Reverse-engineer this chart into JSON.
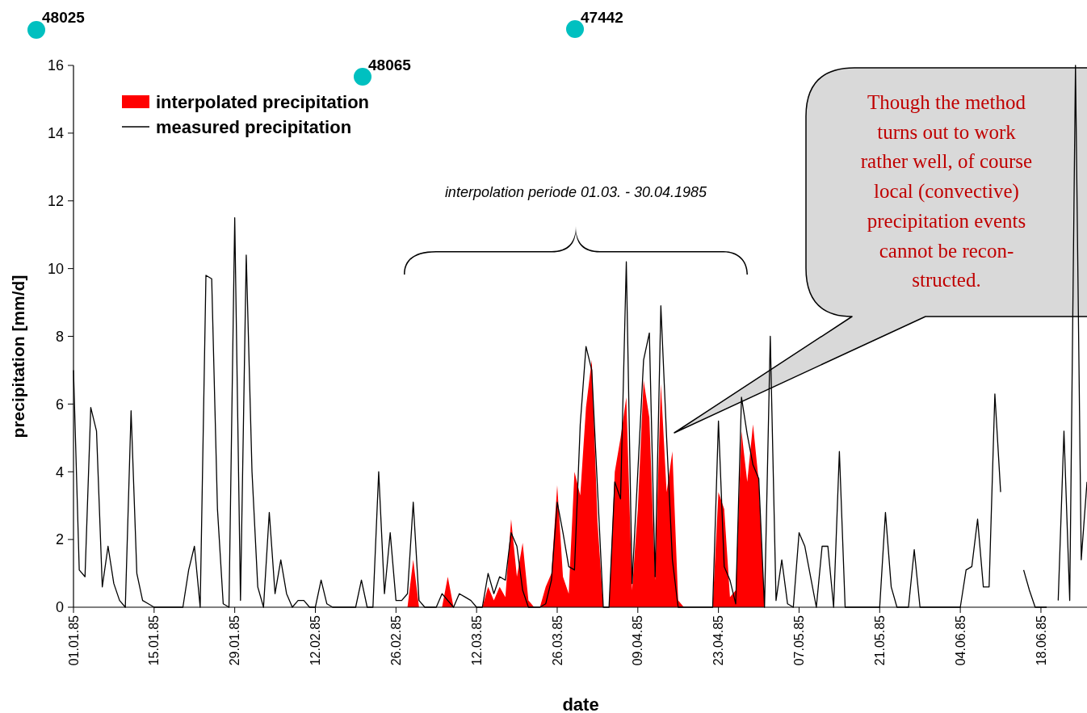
{
  "chart_data": {
    "type": "line",
    "xlabel": "date",
    "ylabel": "precipitation [mm/d]",
    "xlim": [
      "1985-01-01",
      "1985-06-26"
    ],
    "xticks": [
      {
        "value": "1985-01-01",
        "label": "01.01.85"
      },
      {
        "value": "1985-01-15",
        "label": "15.01.85"
      },
      {
        "value": "1985-01-29",
        "label": "29.01.85"
      },
      {
        "value": "1985-02-12",
        "label": "12.02.85"
      },
      {
        "value": "1985-02-26",
        "label": "26.02.85"
      },
      {
        "value": "1985-03-12",
        "label": "12.03.85"
      },
      {
        "value": "1985-03-26",
        "label": "26.03.85"
      },
      {
        "value": "1985-04-09",
        "label": "09.04.85"
      },
      {
        "value": "1985-04-23",
        "label": "23.04.85"
      },
      {
        "value": "1985-05-07",
        "label": "07.05.85"
      },
      {
        "value": "1985-05-21",
        "label": "21.05.85"
      },
      {
        "value": "1985-06-04",
        "label": "04.06.85"
      },
      {
        "value": "1985-06-18",
        "label": "18.06.85"
      }
    ],
    "ylim": [
      0,
      16
    ],
    "yticks": [
      0,
      2,
      4,
      6,
      8,
      10,
      12,
      14,
      16
    ],
    "legend": "top left",
    "x": [
      "1985-01-01",
      "1985-01-02",
      "1985-01-03",
      "1985-01-04",
      "1985-01-05",
      "1985-01-06",
      "1985-01-07",
      "1985-01-08",
      "1985-01-09",
      "1985-01-10",
      "1985-01-11",
      "1985-01-12",
      "1985-01-13",
      "1985-01-14",
      "1985-01-15",
      "1985-01-16",
      "1985-01-17",
      "1985-01-18",
      "1985-01-19",
      "1985-01-20",
      "1985-01-21",
      "1985-01-22",
      "1985-01-23",
      "1985-01-24",
      "1985-01-25",
      "1985-01-26",
      "1985-01-27",
      "1985-01-28",
      "1985-01-29",
      "1985-01-30",
      "1985-01-31",
      "1985-02-01",
      "1985-02-02",
      "1985-02-03",
      "1985-02-04",
      "1985-02-05",
      "1985-02-06",
      "1985-02-07",
      "1985-02-08",
      "1985-02-09",
      "1985-02-10",
      "1985-02-11",
      "1985-02-12",
      "1985-02-13",
      "1985-02-14",
      "1985-02-15",
      "1985-02-16",
      "1985-02-17",
      "1985-02-18",
      "1985-02-19",
      "1985-02-20",
      "1985-02-21",
      "1985-02-22",
      "1985-02-23",
      "1985-02-24",
      "1985-02-25",
      "1985-02-26",
      "1985-02-27",
      "1985-02-28",
      "1985-03-01",
      "1985-03-02",
      "1985-03-03",
      "1985-03-04",
      "1985-03-05",
      "1985-03-06",
      "1985-03-07",
      "1985-03-08",
      "1985-03-09",
      "1985-03-10",
      "1985-03-11",
      "1985-03-12",
      "1985-03-13",
      "1985-03-14",
      "1985-03-15",
      "1985-03-16",
      "1985-03-17",
      "1985-03-18",
      "1985-03-19",
      "1985-03-20",
      "1985-03-21",
      "1985-03-22",
      "1985-03-23",
      "1985-03-24",
      "1985-03-25",
      "1985-03-26",
      "1985-03-27",
      "1985-03-28",
      "1985-03-29",
      "1985-03-30",
      "1985-03-31",
      "1985-04-01",
      "1985-04-02",
      "1985-04-03",
      "1985-04-04",
      "1985-04-05",
      "1985-04-06",
      "1985-04-07",
      "1985-04-08",
      "1985-04-09",
      "1985-04-10",
      "1985-04-11",
      "1985-04-12",
      "1985-04-13",
      "1985-04-14",
      "1985-04-15",
      "1985-04-16",
      "1985-04-17",
      "1985-04-18",
      "1985-04-19",
      "1985-04-20",
      "1985-04-21",
      "1985-04-22",
      "1985-04-23",
      "1985-04-24",
      "1985-04-25",
      "1985-04-26",
      "1985-04-27",
      "1985-04-28",
      "1985-04-29",
      "1985-04-30",
      "1985-05-01",
      "1985-05-02",
      "1985-05-03",
      "1985-05-04",
      "1985-05-05",
      "1985-05-06",
      "1985-05-07",
      "1985-05-08",
      "1985-05-09",
      "1985-05-10",
      "1985-05-11",
      "1985-05-12",
      "1985-05-13",
      "1985-05-14",
      "1985-05-15",
      "1985-05-16",
      "1985-05-17",
      "1985-05-18",
      "1985-05-19",
      "1985-05-20",
      "1985-05-21",
      "1985-05-22",
      "1985-05-23",
      "1985-05-24",
      "1985-05-25",
      "1985-05-26",
      "1985-05-27",
      "1985-05-28",
      "1985-05-29",
      "1985-05-30",
      "1985-05-31",
      "1985-06-01",
      "1985-06-02",
      "1985-06-03",
      "1985-06-04",
      "1985-06-05",
      "1985-06-06",
      "1985-06-07",
      "1985-06-08",
      "1985-06-09",
      "1985-06-10",
      "1985-06-11",
      "1985-06-12",
      "1985-06-13",
      "1985-06-14",
      "1985-06-15",
      "1985-06-16",
      "1985-06-17",
      "1985-06-18",
      "1985-06-19",
      "1985-06-20",
      "1985-06-21",
      "1985-06-22",
      "1985-06-23",
      "1985-06-24",
      "1985-06-25",
      "1985-06-26"
    ],
    "series": [
      {
        "name": "interpolated precipitation",
        "type": "area",
        "color": "#ff0000",
        "x": [
          "1985-02-28",
          "1985-03-01",
          "1985-03-02",
          "1985-03-03",
          "1985-03-04",
          "1985-03-05",
          "1985-03-06",
          "1985-03-07",
          "1985-03-08",
          "1985-03-09",
          "1985-03-10",
          "1985-03-11",
          "1985-03-12",
          "1985-03-13",
          "1985-03-14",
          "1985-03-15",
          "1985-03-16",
          "1985-03-17",
          "1985-03-18",
          "1985-03-19",
          "1985-03-20",
          "1985-03-21",
          "1985-03-22",
          "1985-03-23",
          "1985-03-24",
          "1985-03-25",
          "1985-03-26",
          "1985-03-27",
          "1985-03-28",
          "1985-03-29",
          "1985-03-30",
          "1985-03-31",
          "1985-04-01",
          "1985-04-02",
          "1985-04-03",
          "1985-04-04",
          "1985-04-05",
          "1985-04-06",
          "1985-04-07",
          "1985-04-08",
          "1985-04-09",
          "1985-04-10",
          "1985-04-11",
          "1985-04-12",
          "1985-04-13",
          "1985-04-14",
          "1985-04-15",
          "1985-04-16",
          "1985-04-17",
          "1985-04-18",
          "1985-04-19",
          "1985-04-20",
          "1985-04-21",
          "1985-04-22",
          "1985-04-23",
          "1985-04-24",
          "1985-04-25",
          "1985-04-26",
          "1985-04-27",
          "1985-04-28",
          "1985-04-29",
          "1985-04-30",
          "1985-05-01"
        ],
        "values": [
          0,
          1.4,
          0,
          0,
          0,
          0,
          0,
          0.9,
          0,
          0,
          0,
          0,
          0,
          0,
          0.6,
          0.2,
          0.6,
          0.3,
          2.6,
          0.9,
          1.9,
          0.2,
          0,
          0,
          0.6,
          1.0,
          3.6,
          0.9,
          0.4,
          4.0,
          3.3,
          5.9,
          7.3,
          2.5,
          0,
          0,
          4.0,
          5.0,
          6.2,
          0.5,
          2.9,
          6.7,
          5.6,
          0.8,
          6.6,
          3.4,
          4.6,
          0.2,
          0,
          0,
          0,
          0,
          0,
          0,
          3.4,
          2.9,
          0.3,
          0.5,
          5.2,
          3.7,
          5.4,
          3.7,
          0
        ]
      },
      {
        "name": "measured precipitation",
        "color": "#000000",
        "values": [
          7.0,
          1.1,
          0.9,
          5.9,
          5.2,
          0.6,
          1.8,
          0.7,
          0.2,
          0,
          5.8,
          1.0,
          0.2,
          0.1,
          0,
          0,
          0,
          0,
          0,
          0,
          1.1,
          1.8,
          0,
          9.8,
          9.7,
          2.9,
          0.1,
          0,
          11.5,
          0.2,
          10.4,
          4.0,
          0.6,
          0,
          2.8,
          0.4,
          1.4,
          0.4,
          0,
          0.2,
          0.2,
          0,
          0,
          0.8,
          0.1,
          0,
          0,
          0,
          0,
          0,
          0.8,
          0,
          0,
          4.0,
          0.4,
          2.2,
          0.2,
          0.2,
          0.4,
          3.1,
          0.2,
          0,
          0,
          0,
          0.4,
          0.2,
          0,
          0.4,
          0.3,
          0.2,
          0,
          0,
          1.0,
          0.4,
          0.9,
          0.8,
          2.2,
          1.8,
          0.5,
          0,
          0,
          0,
          0.1,
          0.8,
          3.1,
          2.2,
          1.2,
          1.1,
          5.4,
          7.7,
          7.0,
          3.5,
          0,
          0,
          3.7,
          3.2,
          10.2,
          0.7,
          4.0,
          7.3,
          8.1,
          0.9,
          8.9,
          5.0,
          1.4,
          0,
          0,
          0,
          0,
          0,
          0,
          0,
          5.5,
          1.2,
          0.8,
          0.1,
          6.2,
          5.1,
          4.2,
          3.8,
          0,
          8.0,
          0.2,
          1.4,
          0.1,
          0,
          2.2,
          1.8,
          0.9,
          0,
          1.8,
          1.8,
          0,
          4.6,
          0,
          0,
          0,
          0,
          0,
          0,
          0,
          2.8,
          0.6,
          0,
          0,
          0,
          1.7,
          0,
          0,
          0,
          0,
          0,
          0,
          0,
          0,
          1.1,
          1.2,
          2.6,
          0.6,
          0.6,
          6.3,
          3.4,
          null,
          null,
          null,
          1.1,
          0.5,
          0,
          0,
          0,
          null,
          0.2,
          5.2,
          0.2,
          16,
          1.4,
          3.7
        ]
      }
    ],
    "annotations": [
      "48025",
      "48065",
      "47442",
      "interpolation periode 01.03. - 30.04.1985",
      "Though the method\nturns out to work\nrather well, of course\nlocal (convective)\nprecipitation events\ncannot be recon-\nstructed."
    ]
  }
}
